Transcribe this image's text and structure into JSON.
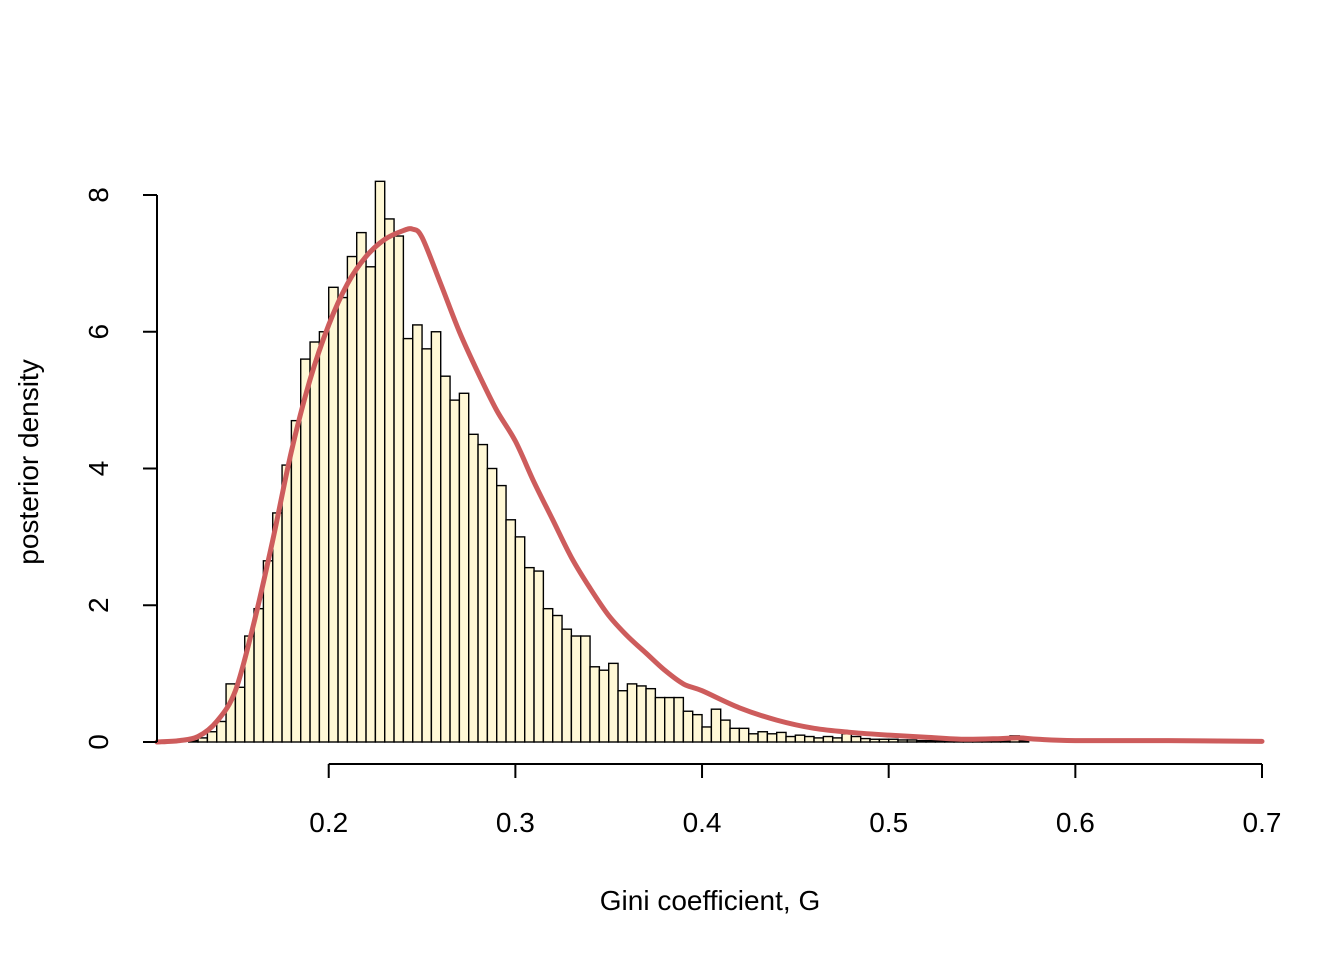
{
  "chart_data": {
    "type": "bar",
    "subtype": "histogram_with_density",
    "title": "",
    "xlabel": "Gini coefficient, G",
    "ylabel": "posterior density",
    "xlim": [
      0.108,
      0.7
    ],
    "ylim": [
      0,
      8.2
    ],
    "x_ticks": [
      0.2,
      0.3,
      0.4,
      0.5,
      0.6,
      0.7
    ],
    "x_tick_labels": [
      "0.2",
      "0.3",
      "0.4",
      "0.5",
      "0.6",
      "0.7"
    ],
    "y_ticks": [
      0,
      2,
      4,
      6,
      8
    ],
    "y_tick_labels": [
      "0",
      "2",
      "4",
      "6",
      "8"
    ],
    "grid": false,
    "legend": "none",
    "colors": {
      "bar_fill": "#fff8d6",
      "bar_stroke": "#000000",
      "density_line": "#cd5c5c",
      "axis": "#000000"
    },
    "histogram": {
      "bin_width": 0.005,
      "bin_start": 0.125,
      "values": [
        0.02,
        0.06,
        0.15,
        0.3,
        0.85,
        0.8,
        1.55,
        1.95,
        2.65,
        3.35,
        4.05,
        4.7,
        5.6,
        5.85,
        6.0,
        6.65,
        6.5,
        7.1,
        7.45,
        6.95,
        8.2,
        7.65,
        7.4,
        5.9,
        6.1,
        5.75,
        6.0,
        5.35,
        5.0,
        5.1,
        4.5,
        4.35,
        4.0,
        3.75,
        3.25,
        3.0,
        2.55,
        2.5,
        1.95,
        1.85,
        1.65,
        1.55,
        1.55,
        1.1,
        1.05,
        1.15,
        0.75,
        0.85,
        0.82,
        0.78,
        0.65,
        0.65,
        0.65,
        0.45,
        0.4,
        0.22,
        0.48,
        0.32,
        0.2,
        0.2,
        0.12,
        0.15,
        0.12,
        0.14,
        0.08,
        0.1,
        0.08,
        0.06,
        0.08,
        0.06,
        0.12,
        0.08,
        0.05,
        0.04,
        0.04,
        0.04,
        0.03,
        0.03,
        0.02,
        0.02,
        0.02,
        0.02,
        0.02,
        0.02,
        0.02,
        0.02,
        0.02,
        0.02,
        0.09,
        0.02
      ]
    },
    "density": {
      "name": "",
      "x": [
        0.108,
        0.12,
        0.13,
        0.14,
        0.15,
        0.16,
        0.17,
        0.18,
        0.19,
        0.2,
        0.21,
        0.22,
        0.23,
        0.24,
        0.245,
        0.25,
        0.26,
        0.27,
        0.28,
        0.29,
        0.3,
        0.31,
        0.32,
        0.33,
        0.34,
        0.35,
        0.36,
        0.37,
        0.38,
        0.39,
        0.4,
        0.42,
        0.44,
        0.46,
        0.48,
        0.5,
        0.52,
        0.54,
        0.56,
        0.57,
        0.58,
        0.6,
        0.65,
        0.7
      ],
      "y": [
        0.0,
        0.02,
        0.08,
        0.3,
        0.75,
        1.75,
        2.95,
        4.25,
        5.3,
        6.1,
        6.7,
        7.1,
        7.35,
        7.48,
        7.5,
        7.38,
        6.7,
        6.0,
        5.4,
        4.85,
        4.4,
        3.8,
        3.25,
        2.7,
        2.25,
        1.85,
        1.55,
        1.3,
        1.05,
        0.85,
        0.75,
        0.5,
        0.32,
        0.2,
        0.14,
        0.1,
        0.07,
        0.04,
        0.05,
        0.06,
        0.04,
        0.02,
        0.02,
        0.01
      ]
    }
  }
}
